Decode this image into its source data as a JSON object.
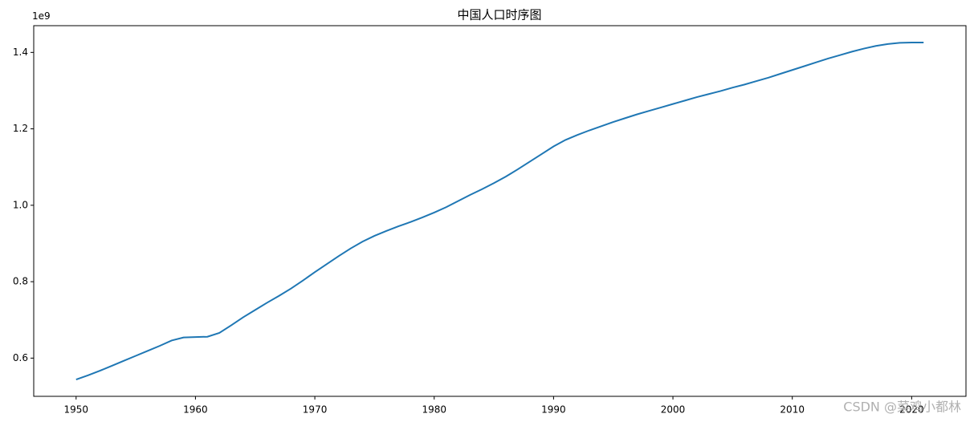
{
  "chart_data": {
    "type": "line",
    "title": "中国人口时序图",
    "y_offset_label": "1e9",
    "x": [
      1950,
      1951,
      1952,
      1953,
      1954,
      1955,
      1956,
      1957,
      1958,
      1959,
      1960,
      1961,
      1962,
      1963,
      1964,
      1965,
      1966,
      1967,
      1968,
      1969,
      1970,
      1971,
      1972,
      1973,
      1974,
      1975,
      1976,
      1977,
      1978,
      1979,
      1980,
      1981,
      1982,
      1983,
      1984,
      1985,
      1986,
      1987,
      1988,
      1989,
      1990,
      1991,
      1992,
      1993,
      1994,
      1995,
      1996,
      1997,
      1998,
      1999,
      2000,
      2001,
      2002,
      2003,
      2004,
      2005,
      2006,
      2007,
      2008,
      2009,
      2010,
      2011,
      2012,
      2013,
      2014,
      2015,
      2016,
      2017,
      2018,
      2019,
      2020,
      2021
    ],
    "series": [
      {
        "color": "#1f77b4",
        "values": [
          0.544,
          0.555,
          0.567,
          0.58,
          0.593,
          0.606,
          0.619,
          0.632,
          0.646,
          0.654,
          0.655,
          0.656,
          0.666,
          0.686,
          0.707,
          0.726,
          0.745,
          0.763,
          0.782,
          0.803,
          0.825,
          0.846,
          0.867,
          0.887,
          0.905,
          0.92,
          0.933,
          0.945,
          0.956,
          0.968,
          0.981,
          0.995,
          1.011,
          1.027,
          1.042,
          1.058,
          1.075,
          1.094,
          1.114,
          1.134,
          1.154,
          1.171,
          1.184,
          1.196,
          1.207,
          1.218,
          1.228,
          1.238,
          1.247,
          1.256,
          1.265,
          1.274,
          1.283,
          1.291,
          1.299,
          1.308,
          1.316,
          1.325,
          1.334,
          1.344,
          1.354,
          1.364,
          1.374,
          1.384,
          1.393,
          1.402,
          1.41,
          1.417,
          1.422,
          1.425,
          1.426,
          1.426
        ]
      }
    ],
    "xlim": [
      1946.45,
      2024.55
    ],
    "xticks": [
      1950,
      1960,
      1970,
      1980,
      1990,
      2000,
      2010,
      2020
    ],
    "ylim": [
      0.5,
      1.47
    ],
    "yticks": [
      0.6,
      0.8,
      1.0,
      1.2,
      1.4
    ],
    "grid": false
  },
  "watermark": "CSDN @菜鸡小都林"
}
